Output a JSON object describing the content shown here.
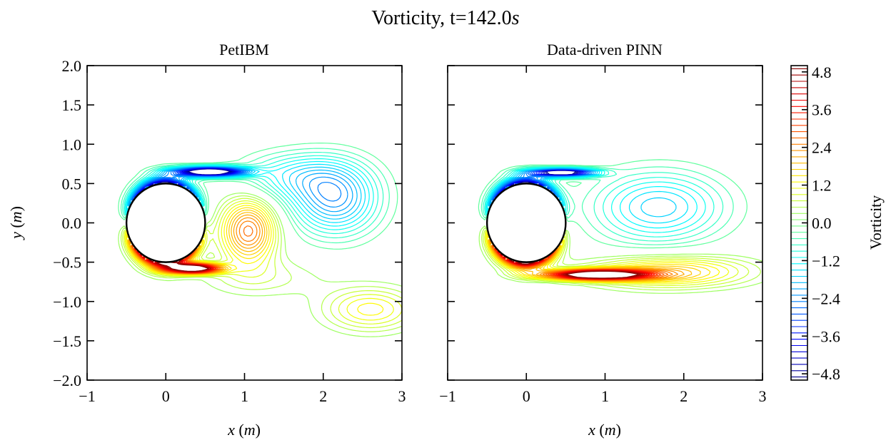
{
  "chart_data": {
    "type": "contour",
    "suptitle": "Vorticity, t=142.0",
    "suptitle_unit": "s",
    "colormap": "jet",
    "cylinder": {
      "center": [
        0,
        0
      ],
      "radius": 0.5
    },
    "panels": [
      {
        "name": "petibm",
        "title": "PetIBM",
        "xlabel_var": "x",
        "xlabel_unit": "m",
        "ylabel_var": "y",
        "ylabel_unit": "m",
        "xlim": [
          -1,
          3
        ],
        "ylim": [
          -2,
          2
        ],
        "xticks": [
          "−1",
          "0",
          "1",
          "2",
          "3"
        ],
        "xtick_values": [
          -1,
          0,
          1,
          2,
          3
        ],
        "yticks": [
          "2.0",
          "1.5",
          "1.0",
          "0.5",
          "0.0",
          "−0.5",
          "−1.0",
          "−1.5",
          "−2.0"
        ],
        "ytick_values": [
          2.0,
          1.5,
          1.0,
          0.5,
          0.0,
          -0.5,
          -1.0,
          -1.5,
          -2.0
        ],
        "wake": "shedding"
      },
      {
        "name": "pinn",
        "title": "Data-driven PINN",
        "xlabel_var": "x",
        "xlabel_unit": "m",
        "xlim": [
          -1,
          3
        ],
        "ylim": [
          -2,
          2
        ],
        "xticks": [
          "−1",
          "0",
          "1",
          "2",
          "3"
        ],
        "xtick_values": [
          -1,
          0,
          1,
          2,
          3
        ],
        "wake": "symmetric"
      }
    ],
    "colorbar": {
      "label": "Vorticity",
      "range": [
        -5,
        5
      ],
      "levels": 50,
      "ticks": [
        "4.8",
        "3.6",
        "2.4",
        "1.2",
        "0.0",
        "−1.2",
        "−2.4",
        "−3.6",
        "−4.8"
      ],
      "tick_values": [
        4.8,
        3.6,
        2.4,
        1.2,
        0.0,
        -1.2,
        -2.4,
        -3.6,
        -4.8
      ]
    }
  }
}
